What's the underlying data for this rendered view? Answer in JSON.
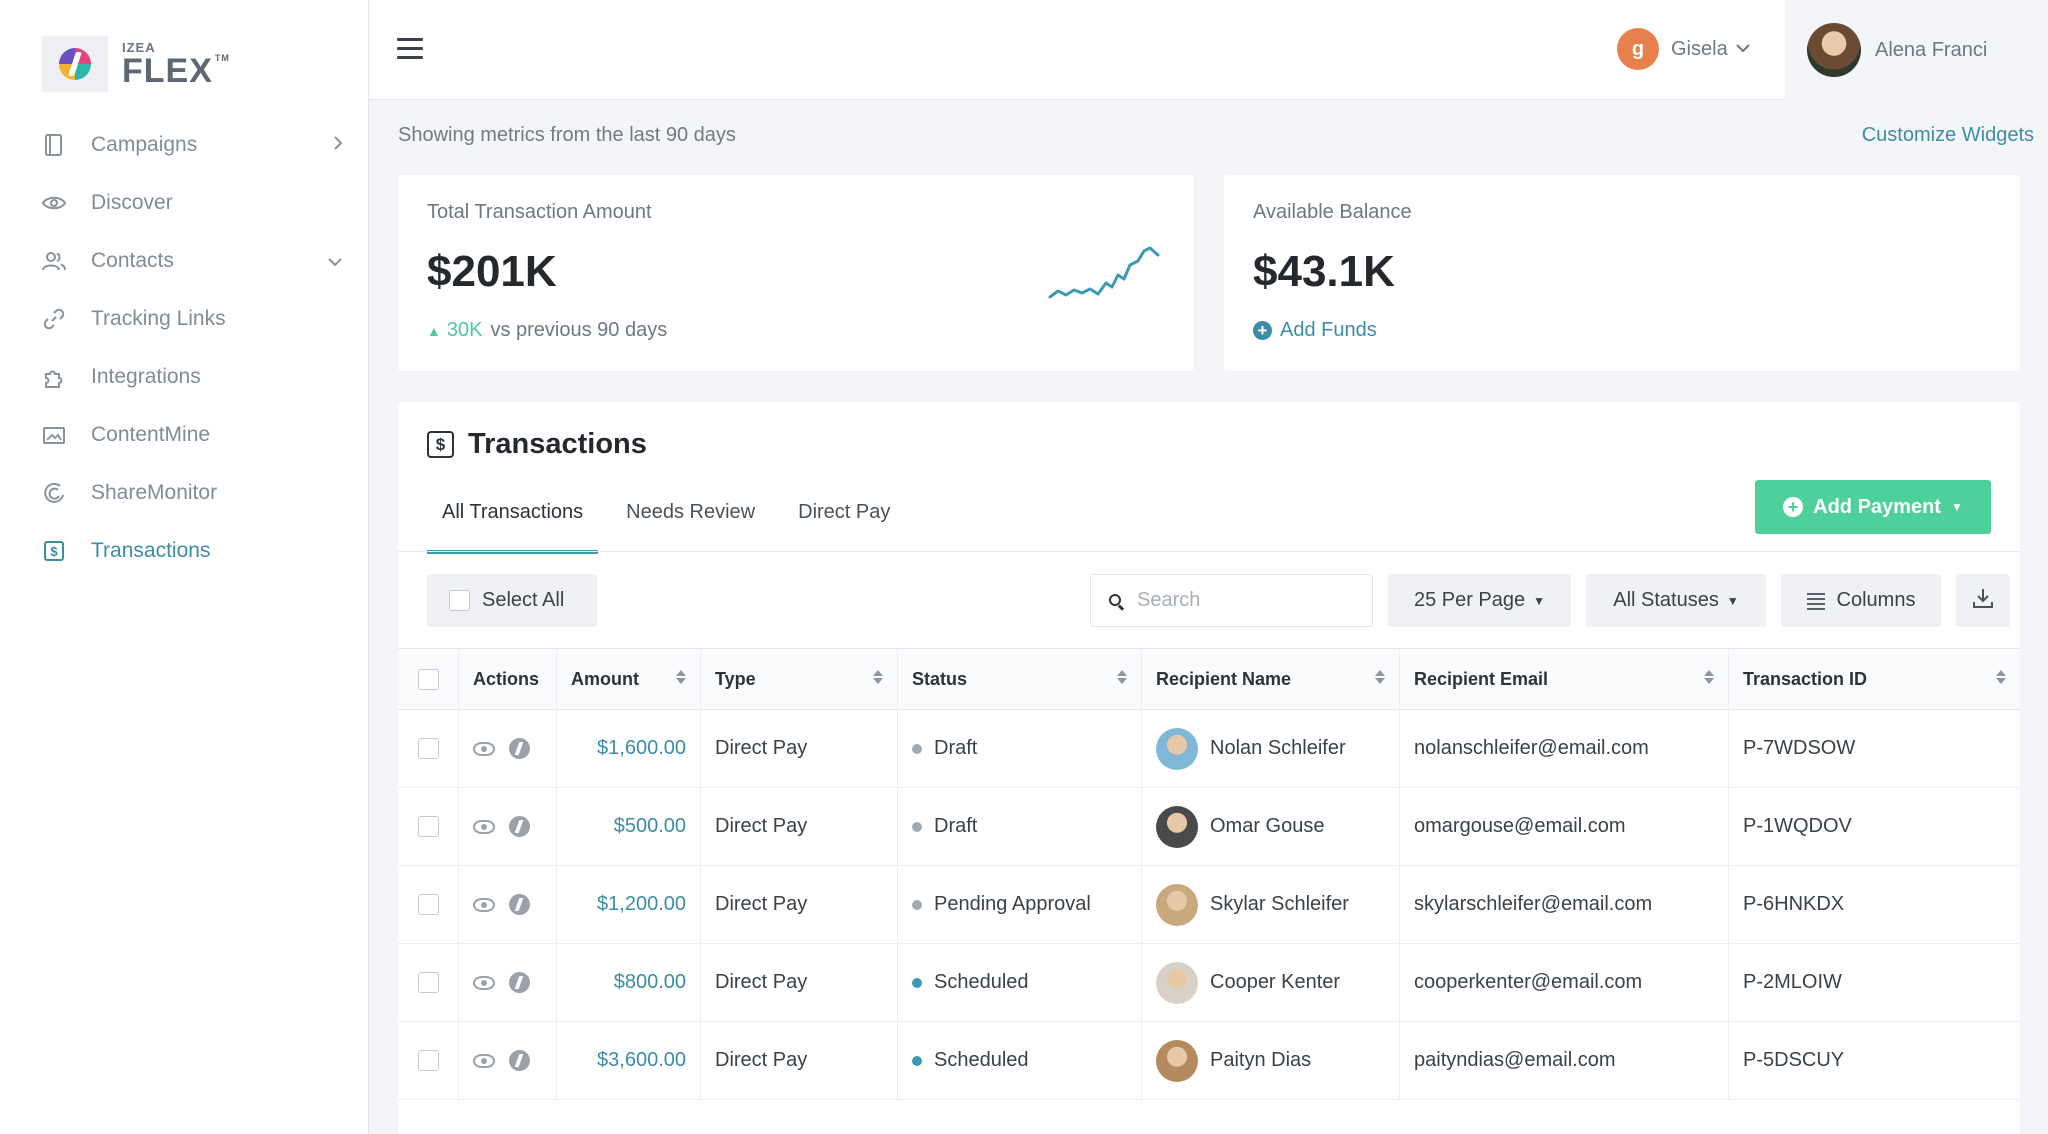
{
  "brand": {
    "izea": "IZEA",
    "flex": "FLEX",
    "tm": "TM"
  },
  "sidebar": {
    "items": [
      {
        "label": "Campaigns",
        "icon": "book-icon",
        "chevron": "right"
      },
      {
        "label": "Discover",
        "icon": "eye-icon"
      },
      {
        "label": "Contacts",
        "icon": "users-icon",
        "chevron": "down"
      },
      {
        "label": "Tracking Links",
        "icon": "link-icon"
      },
      {
        "label": "Integrations",
        "icon": "puzzle-icon"
      },
      {
        "label": "ContentMine",
        "icon": "image-icon"
      },
      {
        "label": "ShareMonitor",
        "icon": "share-monitor-icon"
      },
      {
        "label": "Transactions",
        "icon": "dollar-icon",
        "active": true
      }
    ]
  },
  "header": {
    "account_name": "Gisela",
    "account_initial": "g",
    "user_name": "Alena Franci"
  },
  "metrics": {
    "note": "Showing metrics from the last 90 days",
    "customize_label": "Customize Widgets",
    "total": {
      "label": "Total Transaction Amount",
      "value": "$201K",
      "delta": "30K",
      "delta_suffix": "vs previous 90 days"
    },
    "balance": {
      "label": "Available Balance",
      "value": "$43.1K",
      "add_funds_label": "Add Funds"
    }
  },
  "transactions": {
    "title": "Transactions",
    "tabs": [
      {
        "label": "All Transactions",
        "active": true
      },
      {
        "label": "Needs Review"
      },
      {
        "label": "Direct Pay"
      }
    ],
    "add_payment_label": "Add Payment",
    "select_all_label": "Select All",
    "search_placeholder": "Search",
    "per_page_label": "25 Per Page",
    "statuses_label": "All Statuses",
    "columns_label": "Columns",
    "columns": [
      "Actions",
      "Amount",
      "Type",
      "Status",
      "Recipient Name",
      "Recipient Email",
      "Transaction ID"
    ],
    "rows": [
      {
        "amount": "$1,600.00",
        "type": "Direct Pay",
        "status": "Draft",
        "status_color": "#a3a9b0",
        "name": "Nolan Schleifer",
        "email": "nolanschleifer@email.com",
        "tid": "P-7WDSOW",
        "avatar_color": "#7fb8d6"
      },
      {
        "amount": "$500.00",
        "type": "Direct Pay",
        "status": "Draft",
        "status_color": "#a3a9b0",
        "name": "Omar Gouse",
        "email": "omargouse@email.com",
        "tid": "P-1WQDOV",
        "avatar_color": "#4a4a4a"
      },
      {
        "amount": "$1,200.00",
        "type": "Direct Pay",
        "status": "Pending Approval",
        "status_color": "#a3a9b0",
        "name": "Skylar Schleifer",
        "email": "skylarschleifer@email.com",
        "tid": "P-6HNKDX",
        "avatar_color": "#c9a97c"
      },
      {
        "amount": "$800.00",
        "type": "Direct Pay",
        "status": "Scheduled",
        "status_color": "#3d9ab3",
        "name": "Cooper Kenter",
        "email": "cooperkenter@email.com",
        "tid": "P-2MLOIW",
        "avatar_color": "#d8d1c8"
      },
      {
        "amount": "$3,600.00",
        "type": "Direct Pay",
        "status": "Scheduled",
        "status_color": "#3d9ab3",
        "name": "Paityn Dias",
        "email": "paityndias@email.com",
        "tid": "P-5DSCUY",
        "avatar_color": "#b58a5f"
      }
    ]
  },
  "colors": {
    "accent": "#3d8ca6",
    "success": "#4dd09a",
    "positive": "#4dc9a0"
  }
}
